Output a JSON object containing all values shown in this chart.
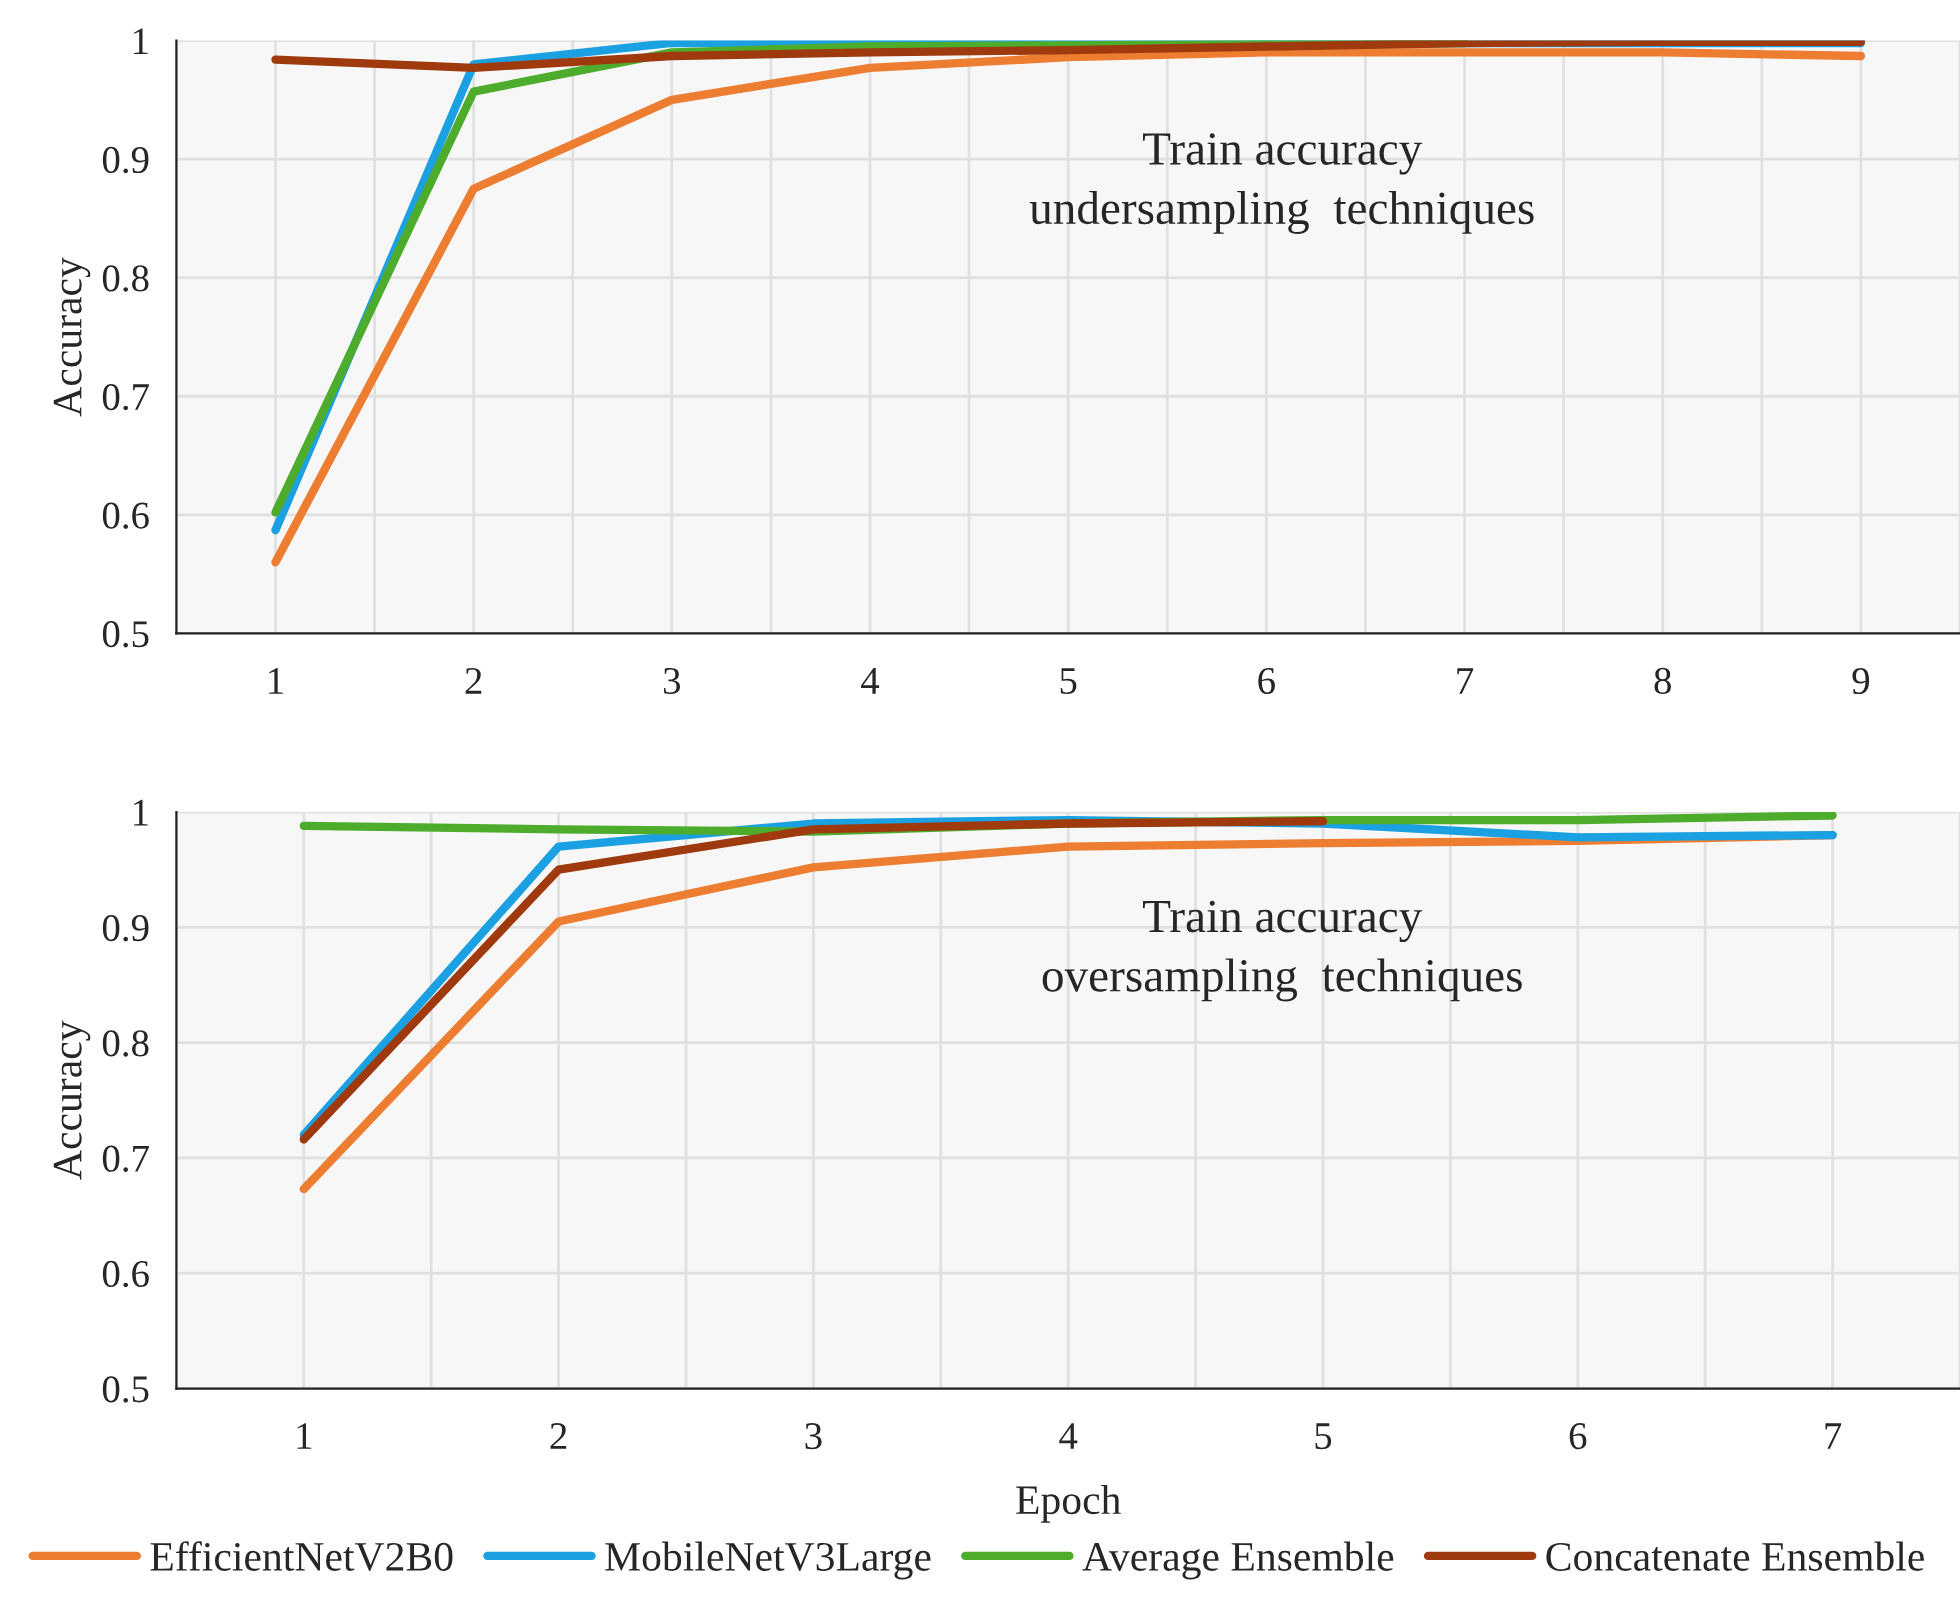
{
  "chart_data": [
    {
      "type": "line",
      "ylabel": "Accuracy",
      "categories": [
        "1",
        "2",
        "3",
        "4",
        "5",
        "6",
        "7",
        "8",
        "9"
      ],
      "ylim": [
        0.5,
        1
      ],
      "yticks": [
        0.5,
        0.6,
        0.7,
        0.8,
        0.9,
        {
          "value": 1,
          "label": "1"
        }
      ],
      "grid": true,
      "legend": false,
      "annotations": [
        "Train accuracy\nundersampling  techniques"
      ],
      "series": [
        {
          "color": "#ed7d31",
          "values": [
            0.56,
            0.875,
            0.95,
            0.977,
            0.986,
            0.99,
            0.99,
            0.99,
            0.987
          ]
        },
        {
          "color": "#1ba1e2",
          "values": [
            0.587,
            0.98,
            0.998,
            0.998,
            0.998,
            0.998,
            0.998,
            0.998,
            0.998
          ]
        },
        {
          "color": "#4eac2c",
          "values": [
            0.602,
            0.957,
            0.99,
            0.995,
            0.996,
            0.997,
            0.998,
            null,
            null
          ]
        },
        {
          "color": "#9e3a0e",
          "values": [
            0.984,
            0.977,
            0.987,
            0.99,
            0.992,
            0.995,
            0.998,
            0.999,
            0.999
          ]
        }
      ]
    },
    {
      "type": "line",
      "ylabel": "Accuracy",
      "xlabel": "Epoch",
      "categories": [
        "1",
        "2",
        "3",
        "4",
        "5",
        "6",
        "7"
      ],
      "ylim": [
        0.5,
        1
      ],
      "yticks": [
        0.5,
        0.6,
        0.7,
        0.8,
        0.9,
        {
          "value": 1,
          "label": "1"
        }
      ],
      "grid": true,
      "legend": "bottom",
      "annotations": [
        "Train accuracy\noversampling  techniques"
      ],
      "series": [
        {
          "name": "EfficientNetV2B0",
          "color": "#ed7d31",
          "values": [
            0.673,
            0.905,
            0.952,
            0.97,
            0.973,
            0.975,
            0.98
          ]
        },
        {
          "name": "MobileNetV3Large",
          "color": "#1ba1e2",
          "values": [
            0.72,
            0.97,
            0.99,
            0.993,
            0.99,
            0.978,
            0.98
          ]
        },
        {
          "name": "Average Ensemble",
          "color": "#4eac2c",
          "values": [
            0.988,
            0.985,
            0.983,
            0.99,
            0.993,
            0.993,
            0.997
          ]
        },
        {
          "name": "Concatenate Ensemble",
          "color": "#9e3a0e",
          "values": [
            0.716,
            0.95,
            0.985,
            0.99,
            0.992,
            null,
            null
          ]
        }
      ]
    }
  ]
}
